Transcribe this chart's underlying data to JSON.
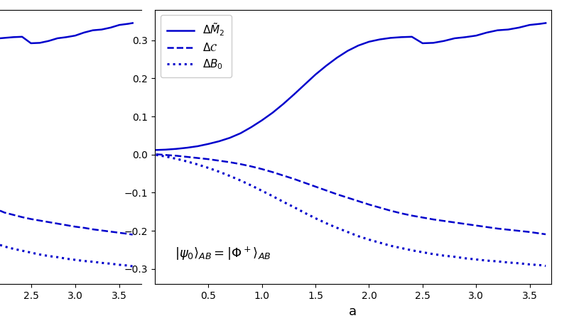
{
  "title": "",
  "xlabel": "a",
  "ylabel": "",
  "line_color": "#0000cc",
  "background_color": "#ffffff",
  "xlim_right": [
    0.0,
    3.7
  ],
  "ylim_right": [
    -0.34,
    0.38
  ],
  "xlim_left": [
    2.15,
    3.75
  ],
  "ylim_left": [
    -0.34,
    0.38
  ],
  "yticks_right": [
    -0.3,
    -0.2,
    -0.1,
    0.0,
    0.1,
    0.2,
    0.3
  ],
  "xticks_right": [
    0.5,
    1.0,
    1.5,
    2.0,
    2.5,
    3.0,
    3.5
  ],
  "xticks_left": [
    2.5,
    3.0,
    3.5
  ],
  "legend_labels": [
    "$\\Delta\\tilde{M}_2$",
    "$\\Delta\\mathcal{C}$",
    "$\\Delta B_0$"
  ],
  "annotation": "$|\\psi_0\\rangle_{AB} = |\\Phi^+\\rangle_{AB}$",
  "x_right": [
    0.01,
    0.1,
    0.2,
    0.3,
    0.4,
    0.5,
    0.6,
    0.7,
    0.8,
    0.9,
    1.0,
    1.1,
    1.2,
    1.3,
    1.4,
    1.5,
    1.6,
    1.7,
    1.8,
    1.9,
    2.0,
    2.1,
    2.2,
    2.3,
    2.4,
    2.5,
    2.6,
    2.7,
    2.8,
    2.9,
    3.0,
    3.1,
    3.2,
    3.3,
    3.4,
    3.5,
    3.6,
    3.65
  ],
  "solid_right": [
    0.012,
    0.013,
    0.015,
    0.018,
    0.022,
    0.028,
    0.035,
    0.044,
    0.056,
    0.072,
    0.09,
    0.11,
    0.133,
    0.158,
    0.184,
    0.21,
    0.233,
    0.254,
    0.272,
    0.286,
    0.296,
    0.302,
    0.306,
    0.308,
    0.309,
    0.292,
    0.293,
    0.298,
    0.305,
    0.308,
    0.312,
    0.32,
    0.326,
    0.328,
    0.333,
    0.34,
    0.343,
    0.345
  ],
  "dashed_right": [
    0.001,
    -0.001,
    -0.003,
    -0.006,
    -0.009,
    -0.012,
    -0.016,
    -0.02,
    -0.025,
    -0.031,
    -0.038,
    -0.046,
    -0.055,
    -0.064,
    -0.074,
    -0.084,
    -0.094,
    -0.104,
    -0.113,
    -0.122,
    -0.131,
    -0.139,
    -0.147,
    -0.154,
    -0.16,
    -0.165,
    -0.17,
    -0.174,
    -0.178,
    -0.182,
    -0.186,
    -0.19,
    -0.194,
    -0.197,
    -0.2,
    -0.203,
    -0.207,
    -0.209
  ],
  "dotted_right": [
    -0.001,
    -0.005,
    -0.011,
    -0.018,
    -0.026,
    -0.035,
    -0.045,
    -0.056,
    -0.068,
    -0.081,
    -0.095,
    -0.109,
    -0.124,
    -0.138,
    -0.153,
    -0.167,
    -0.18,
    -0.192,
    -0.203,
    -0.214,
    -0.223,
    -0.231,
    -0.239,
    -0.245,
    -0.251,
    -0.256,
    -0.261,
    -0.265,
    -0.268,
    -0.272,
    -0.275,
    -0.278,
    -0.28,
    -0.283,
    -0.285,
    -0.288,
    -0.29,
    -0.292
  ],
  "x_left": [
    2.15,
    2.2,
    2.3,
    2.4,
    2.5,
    2.6,
    2.7,
    2.8,
    2.9,
    3.0,
    3.1,
    3.2,
    3.3,
    3.4,
    3.5,
    3.6,
    3.65
  ],
  "solid_left": [
    0.305,
    0.306,
    0.308,
    0.309,
    0.292,
    0.293,
    0.298,
    0.305,
    0.308,
    0.312,
    0.32,
    0.326,
    0.328,
    0.333,
    0.34,
    0.343,
    0.345
  ],
  "dashed_left": [
    -0.147,
    -0.152,
    -0.158,
    -0.164,
    -0.169,
    -0.173,
    -0.177,
    -0.181,
    -0.185,
    -0.189,
    -0.192,
    -0.196,
    -0.199,
    -0.202,
    -0.205,
    -0.208,
    -0.21
  ],
  "dotted_left": [
    -0.237,
    -0.241,
    -0.247,
    -0.252,
    -0.257,
    -0.262,
    -0.266,
    -0.269,
    -0.273,
    -0.276,
    -0.279,
    -0.281,
    -0.284,
    -0.286,
    -0.289,
    -0.291,
    -0.293
  ]
}
